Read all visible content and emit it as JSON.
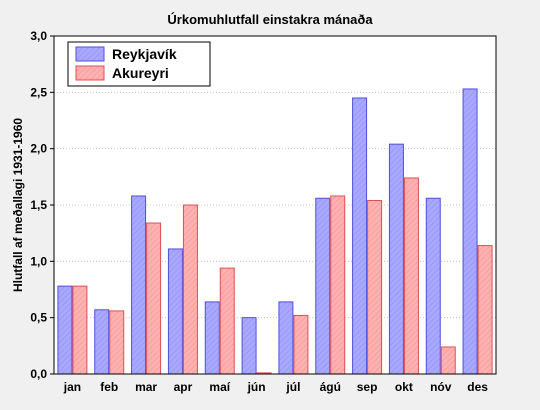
{
  "chart_data": {
    "type": "bar",
    "title": "Úrkomuhlutfall einstakra mánaða",
    "xlabel": "",
    "ylabel": "Hlutfall af meðallagi 1931-1960",
    "ylim": [
      0,
      3
    ],
    "yticks": [
      "0,0",
      "0,5",
      "1,0",
      "1,5",
      "2,0",
      "2,5",
      "3,0"
    ],
    "categories": [
      "jan",
      "feb",
      "mar",
      "apr",
      "maí",
      "jún",
      "júl",
      "ágú",
      "sep",
      "okt",
      "nóv",
      "des"
    ],
    "series": [
      {
        "name": "Reykjavík",
        "color": "#a0a0ff",
        "values": [
          0.78,
          0.57,
          1.58,
          1.11,
          0.64,
          0.5,
          0.64,
          1.56,
          2.45,
          2.04,
          1.56,
          2.53
        ]
      },
      {
        "name": "Akureyri",
        "color": "#ffa8a8",
        "values": [
          0.78,
          0.56,
          1.34,
          1.5,
          0.94,
          0.01,
          0.52,
          1.58,
          1.54,
          1.74,
          0.24,
          1.14
        ]
      }
    ],
    "grid": true,
    "legend_position": "top-left"
  }
}
